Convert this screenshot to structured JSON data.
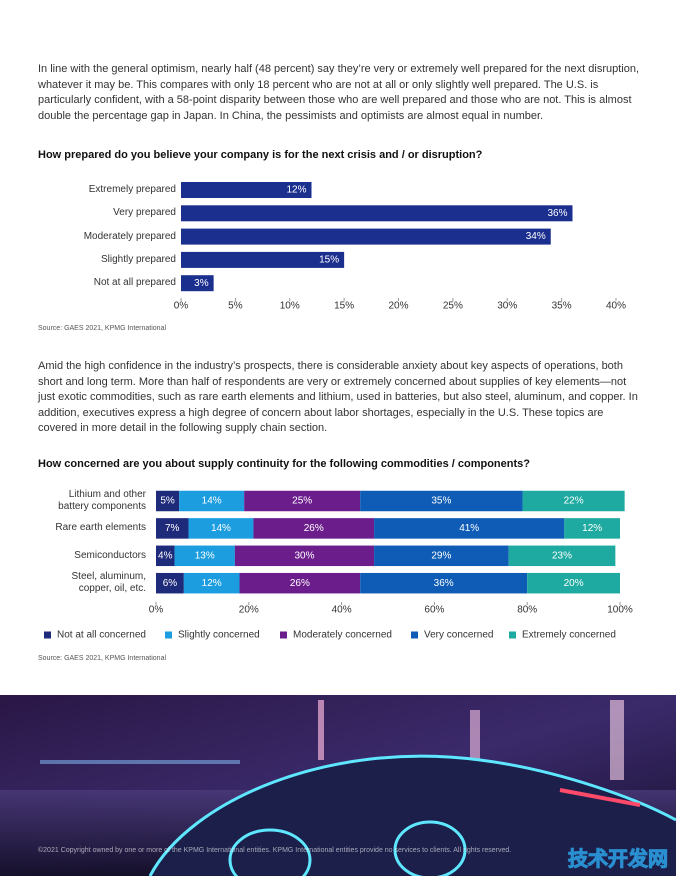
{
  "paragraphs": [
    "In line with the general optimism, nearly half (48 percent) say they’re very or extremely well prepared for the next disruption, whatever it may be. This compares with only 18 percent who are not at all or only slightly well prepared. The U.S. is particularly confident, with a 58-point disparity between those who are well prepared and those who are not. This is almost double the percentage gap in Japan. In China, the pessimists and optimists are almost equal in number.",
    "Amid the high confidence in the industry’s prospects, there is considerable anxiety about key aspects of operations, both short and long term. More than half of respondents are very or extremely concerned about supplies of key elements—not just exotic commodities, such as rare earth elements and lithium, used in batteries, but also steel, aluminum, and copper. In addition, executives express a high degree of concern about labor shortages, especially in the U.S. These topics are covered in more detail in the following supply chain section."
  ],
  "chart_data": [
    {
      "type": "bar",
      "orientation": "horizontal",
      "title": "How prepared do you believe your company is for the next crisis and / or disruption?",
      "source": "Source: GAES 2021, KPMG International",
      "categories": [
        "Extremely prepared",
        "Very prepared",
        "Moderately prepared",
        "Slightly prepared",
        "Not at all prepared"
      ],
      "values": [
        12,
        36,
        34,
        15,
        3
      ],
      "value_labels": [
        "12%",
        "36%",
        "34%",
        "15%",
        "3%"
      ],
      "color": "#1b2f8e",
      "xlim": [
        0,
        40
      ],
      "xticks": [
        {
          "value": 0,
          "label": "0%"
        },
        {
          "value": 5,
          "label": "5%"
        },
        {
          "value": 10,
          "label": "10%"
        },
        {
          "value": 15,
          "label": "15%"
        },
        {
          "value": 20,
          "label": "20%"
        },
        {
          "value": 25,
          "label": "25%"
        },
        {
          "value": 30,
          "label": "30%"
        },
        {
          "value": 35,
          "label": "35%"
        },
        {
          "value": 40,
          "label": "40%"
        }
      ]
    },
    {
      "type": "stacked_bar",
      "orientation": "horizontal",
      "title": "How concerned are you about supply continuity for the following commodities / components?",
      "source": "Source: GAES 2021, KPMG International",
      "categories": [
        "Lithium and other battery components",
        "Rare earth elements",
        "Semiconductors",
        "Steel, aluminum, copper, oil, etc."
      ],
      "series": [
        {
          "name": "Not at all concerned",
          "color": "#1e2a7a",
          "values": [
            5,
            7,
            4,
            6
          ],
          "value_labels": [
            "5%",
            "7%",
            "4%",
            "6%"
          ]
        },
        {
          "name": "Slightly concerned",
          "color": "#1b9ddf",
          "values": [
            14,
            14,
            13,
            12
          ],
          "value_labels": [
            "14%",
            "14%",
            "13%",
            "12%"
          ]
        },
        {
          "name": "Moderately concerned",
          "color": "#6c1d8c",
          "values": [
            25,
            26,
            30,
            26
          ],
          "value_labels": [
            "25%",
            "26%",
            "30%",
            "26%"
          ]
        },
        {
          "name": "Very concerned",
          "color": "#0f5cb6",
          "values": [
            35,
            41,
            29,
            36
          ],
          "value_labels": [
            "35%",
            "41%",
            "29%",
            "36%"
          ]
        },
        {
          "name": "Extremely concerned",
          "color": "#1eaaa0",
          "values": [
            22,
            12,
            23,
            20
          ],
          "value_labels": [
            "22%",
            "12%",
            "23%",
            "20%"
          ]
        }
      ],
      "xlim": [
        0,
        100
      ],
      "xticks": [
        {
          "value": 0,
          "label": "0%"
        },
        {
          "value": 20,
          "label": "20%"
        },
        {
          "value": 40,
          "label": "40%"
        },
        {
          "value": 60,
          "label": "60%"
        },
        {
          "value": 80,
          "label": "80%"
        },
        {
          "value": 100,
          "label": "100%"
        }
      ],
      "legend": "bottom"
    }
  ],
  "footer": "©2021 Copyright owned by one or more of the KPMG International entities. KPMG International entities provide no services to clients. All rights reserved.",
  "watermark": "技术开发网"
}
